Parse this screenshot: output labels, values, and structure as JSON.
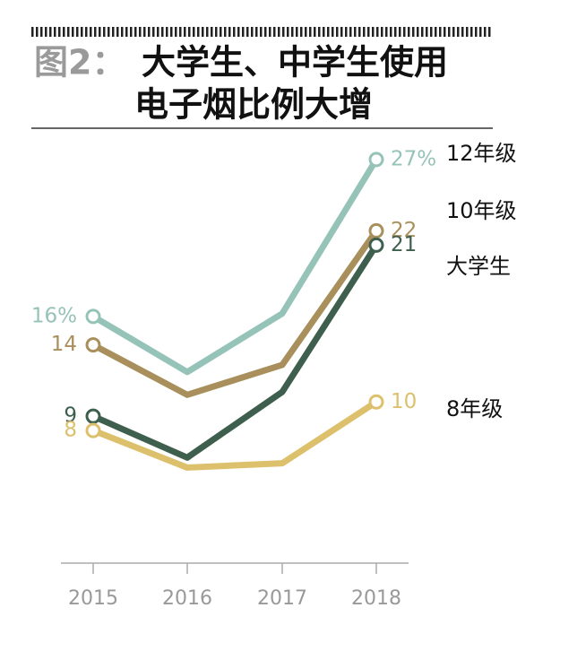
{
  "chart_data": {
    "type": "line",
    "figure_label": "图2：",
    "title_lines": [
      "大学生、中学生使用",
      "电子烟比例大增"
    ],
    "categories": [
      "2015",
      "2016",
      "2017",
      "2018"
    ],
    "ylim": [
      -1.3,
      28
    ],
    "series": [
      {
        "name": "12年级",
        "color": "#96c3b8",
        "values": [
          16,
          12.1,
          16.2,
          27
        ],
        "value_labels": [
          "16%",
          null,
          null,
          "27%"
        ]
      },
      {
        "name": "10年级",
        "color": "#a88f5c",
        "values": [
          14,
          10.5,
          12.6,
          22
        ]
      },
      {
        "name": "大学生",
        "color": "#3e5f4d",
        "values": [
          9,
          6.1,
          10.7,
          21
        ]
      },
      {
        "name": "8年级",
        "color": "#dcc06c",
        "values": [
          8,
          5.4,
          5.7,
          10
        ]
      }
    ]
  }
}
